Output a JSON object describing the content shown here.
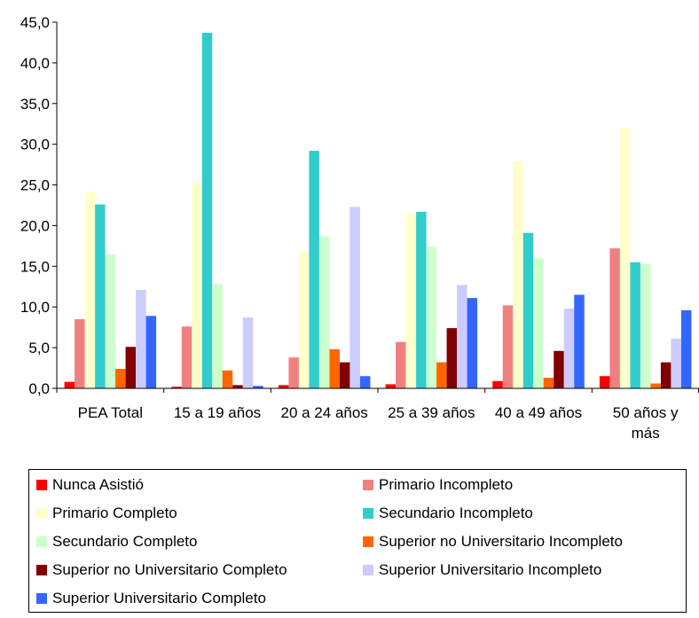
{
  "chart_data": {
    "type": "bar",
    "ylim": [
      0,
      45
    ],
    "yticks": [
      "0,0",
      "5,0",
      "10,0",
      "15,0",
      "20,0",
      "25,0",
      "30,0",
      "35,0",
      "40,0",
      "45,0"
    ],
    "categories": [
      [
        "PEA Total"
      ],
      [
        "15 a 19 años"
      ],
      [
        "20 a 24 años"
      ],
      [
        "25 a 39 años"
      ],
      [
        "40 a 49 años"
      ],
      [
        "50 años y",
        "más"
      ]
    ],
    "series": [
      {
        "name": "Nunca Asistió",
        "color": "#ff0000",
        "values": [
          0.8,
          0.2,
          0.4,
          0.5,
          0.9,
          1.5
        ]
      },
      {
        "name": "Primario Incompleto",
        "color": "#f08080",
        "values": [
          8.5,
          7.6,
          3.8,
          5.7,
          10.2,
          17.2
        ]
      },
      {
        "name": "Primario Completo",
        "color": "#ffffcc",
        "values": [
          24.2,
          25.2,
          16.8,
          21.5,
          27.9,
          32.0
        ]
      },
      {
        "name": "Secundario Incompleto",
        "color": "#33cccc",
        "values": [
          22.6,
          43.7,
          29.2,
          21.7,
          19.1,
          15.5
        ]
      },
      {
        "name": "Secundario Completo",
        "color": "#ccffcc",
        "values": [
          16.5,
          12.8,
          18.7,
          17.4,
          16.0,
          15.3
        ]
      },
      {
        "name": "Superior no Universitario Incompleto",
        "color": "#ff6600",
        "values": [
          2.4,
          2.2,
          4.8,
          3.2,
          1.3,
          0.6
        ]
      },
      {
        "name": "Superior no Universitario Completo",
        "color": "#800000",
        "values": [
          5.1,
          0.4,
          3.2,
          7.4,
          4.6,
          3.2
        ]
      },
      {
        "name": "Superior Universitario Incompleto",
        "color": "#ccccff",
        "values": [
          12.1,
          8.7,
          22.3,
          12.7,
          9.8,
          6.1
        ]
      },
      {
        "name": "Superior Universitario Completo",
        "color": "#3366ff",
        "values": [
          8.9,
          0.3,
          1.5,
          11.1,
          11.5,
          9.6
        ]
      }
    ],
    "legend": "bottom"
  }
}
